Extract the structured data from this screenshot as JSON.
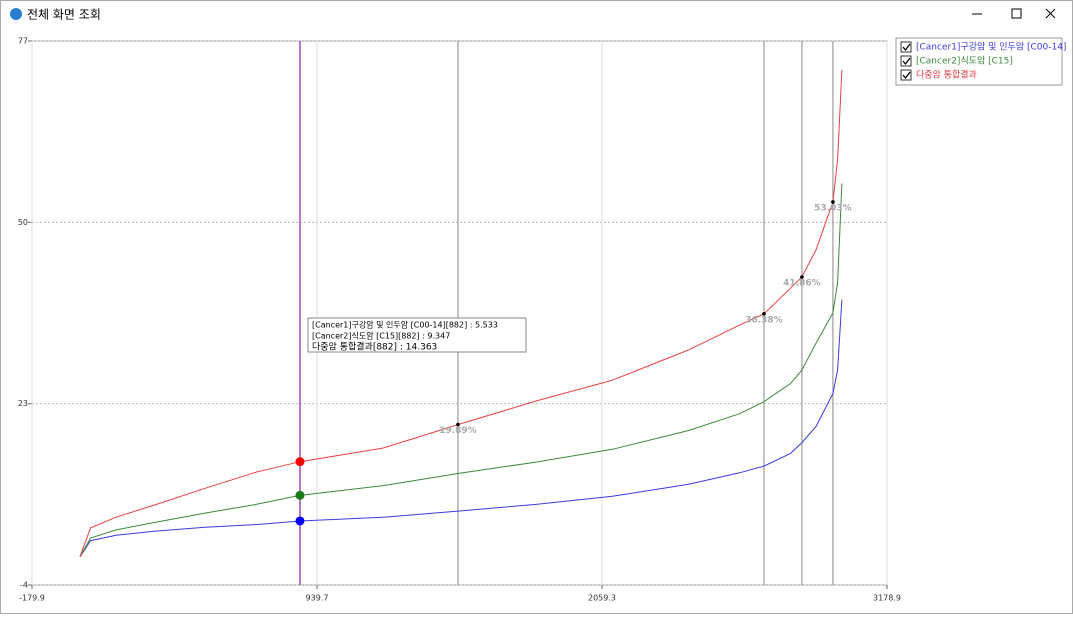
{
  "window": {
    "title": "전체 화면 조회"
  },
  "chart_data": {
    "type": "line",
    "x": [
      8.6,
      50,
      150,
      300,
      500,
      700,
      872.8,
      1200,
      1493.5,
      1800,
      2100,
      2400,
      2600,
      2695.6,
      2800,
      2844.7,
      2900,
      2966.5,
      2985,
      3001.9
    ],
    "series": [
      {
        "name": "[Cancer1]구강암 및 인두암 [C00-14]",
        "color": "#3a3ae0",
        "values": [
          0.2,
          2.6,
          3.4,
          4.0,
          4.6,
          5.0,
          5.533,
          6.1,
          7.0,
          8.0,
          9.2,
          11.0,
          12.7,
          13.7,
          15.6,
          17.2,
          19.6,
          24.5,
          28,
          38.5
        ]
      },
      {
        "name": "[Cancer2]식도암 [C15]",
        "color": "#3a8a3a",
        "values": [
          0.2,
          3.0,
          4.2,
          5.3,
          6.7,
          8.0,
          9.347,
          10.8,
          12.6,
          14.3,
          16.2,
          19.0,
          21.5,
          23.3,
          26.0,
          28.0,
          32.0,
          36.5,
          41,
          55.8
        ]
      },
      {
        "name": "다중암 통합결과",
        "color": "#e84040",
        "values": [
          0.2,
          4.5,
          6.1,
          7.9,
          10.4,
          12.8,
          14.363,
          16.4,
          19.89,
          23.4,
          26.5,
          31.0,
          34.7,
          36.38,
          40.2,
          41.86,
          45.9,
          53.03,
          59.3,
          72.7
        ]
      }
    ],
    "xlim": [
      -179.9,
      3178.9
    ],
    "xticks": [
      -179.9,
      939.7,
      2059.3,
      3178.9
    ],
    "ylim": [
      -4,
      77
    ],
    "yticks": [
      -4,
      23,
      50,
      77
    ],
    "grid": true,
    "cursor": {
      "x": 872.8,
      "color": "#9b4fb0"
    },
    "markers": [
      {
        "x": 1493.5,
        "y": 19.89,
        "label": "19.89%"
      },
      {
        "x": 2695.6,
        "y": 36.38,
        "label": "36.38%"
      },
      {
        "x": 2844.7,
        "y": 41.86,
        "label": "41.86%"
      },
      {
        "x": 2966.5,
        "y": 53.03,
        "label": "53.03%"
      }
    ],
    "tooltip": [
      "[Cancer1]구강암 및 인두암 [C00-14][882] : 5.533",
      "[Cancer2]식도암 [C15][882] : 9.347",
      "다중암 통합결과[882] : 14.363"
    ]
  }
}
